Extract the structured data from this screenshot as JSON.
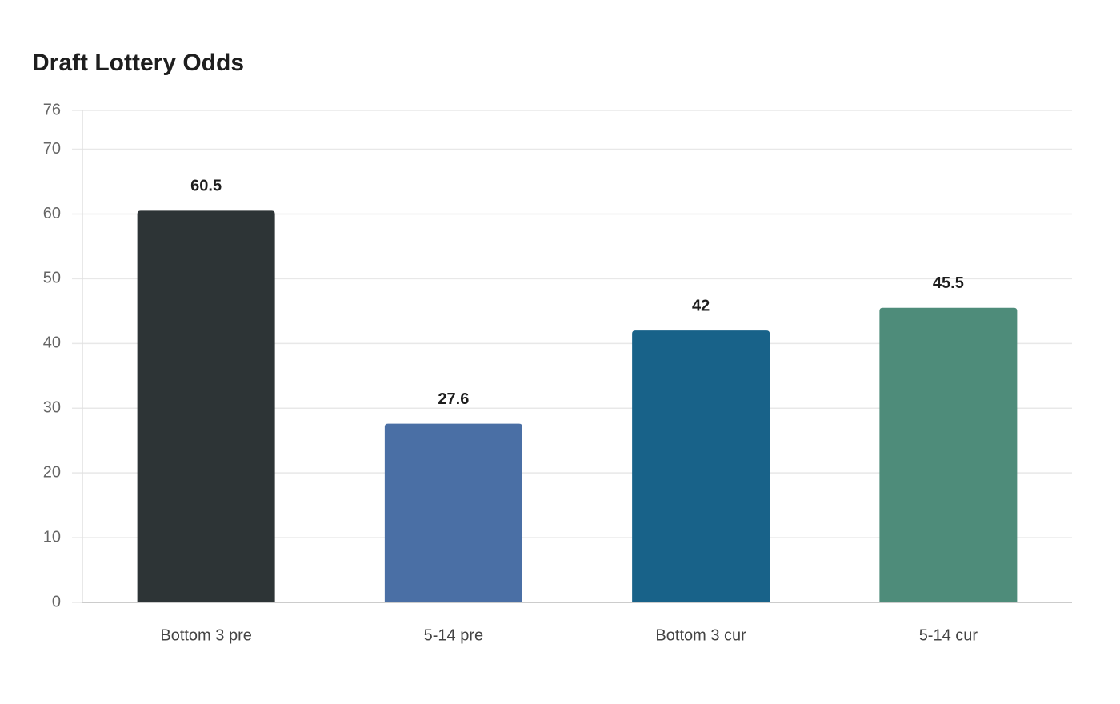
{
  "chart_data": {
    "type": "bar",
    "title": "Draft Lottery Odds",
    "categories": [
      "Bottom 3 pre",
      "5-14 pre",
      "Bottom 3 cur",
      "5-14 cur"
    ],
    "values": [
      60.5,
      27.6,
      42,
      45.5
    ],
    "colors": [
      "#2d3436",
      "#4a6fa5",
      "#186289",
      "#4e8c7a"
    ],
    "ylim": [
      0,
      76
    ],
    "yticks": [
      0,
      10,
      20,
      30,
      40,
      50,
      60,
      70,
      76
    ],
    "grid": true
  }
}
